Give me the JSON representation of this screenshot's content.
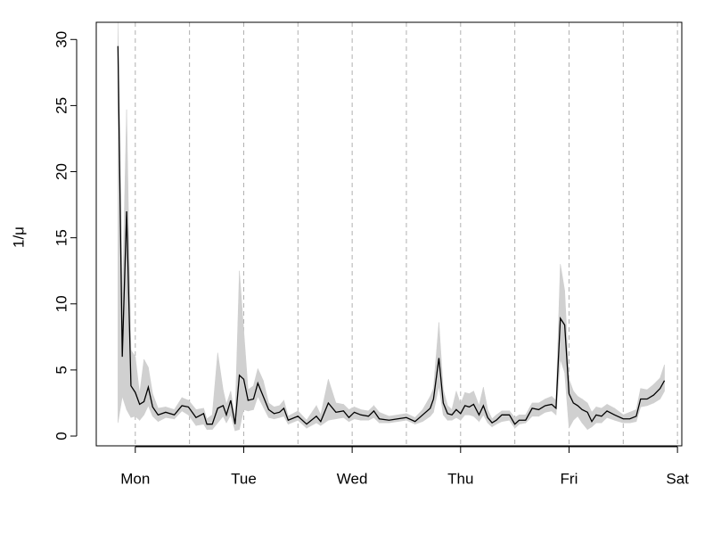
{
  "chart_data": {
    "type": "band-line",
    "ylabel": "1/μ",
    "x": [
      0.84,
      0.88,
      0.92,
      0.96,
      1.0,
      1.04,
      1.08,
      1.12,
      1.16,
      1.21,
      1.28,
      1.36,
      1.43,
      1.49,
      1.56,
      1.63,
      1.66,
      1.71,
      1.76,
      1.81,
      1.84,
      1.88,
      1.92,
      1.96,
      2.0,
      2.04,
      2.09,
      2.13,
      2.18,
      2.23,
      2.28,
      2.33,
      2.37,
      2.41,
      2.5,
      2.58,
      2.67,
      2.71,
      2.78,
      2.85,
      2.92,
      2.97,
      3.02,
      3.08,
      3.15,
      3.2,
      3.25,
      3.34,
      3.42,
      3.5,
      3.58,
      3.65,
      3.72,
      3.75,
      3.8,
      3.84,
      3.88,
      3.92,
      3.96,
      4.0,
      4.04,
      4.08,
      4.12,
      4.17,
      4.21,
      4.25,
      4.29,
      4.33,
      4.38,
      4.45,
      4.5,
      4.54,
      4.6,
      4.66,
      4.72,
      4.78,
      4.84,
      4.88,
      4.92,
      4.96,
      5.0,
      5.04,
      5.08,
      5.12,
      5.17,
      5.21,
      5.25,
      5.3,
      5.35,
      5.42,
      5.5,
      5.56,
      5.62,
      5.66,
      5.72,
      5.78,
      5.84,
      5.88
    ],
    "series": [
      {
        "color": "#000000",
        "band_color": "#d0d0d0",
        "values": [
          29.5,
          6,
          17,
          3.8,
          3.3,
          2.4,
          2.6,
          3.7,
          2.2,
          1.6,
          1.8,
          1.6,
          2.3,
          2.2,
          1.4,
          1.7,
          0.9,
          0.9,
          2.1,
          2.3,
          1.6,
          2.7,
          0.9,
          4.6,
          4.3,
          2.7,
          2.8,
          4,
          3,
          2,
          1.7,
          1.8,
          2.1,
          1.2,
          1.5,
          0.9,
          1.5,
          1.1,
          2.5,
          1.8,
          1.9,
          1.4,
          1.8,
          1.6,
          1.5,
          1.9,
          1.3,
          1.2,
          1.3,
          1.4,
          1.1,
          1.6,
          2.1,
          2.8,
          5.9,
          2.5,
          1.7,
          1.6,
          2,
          1.7,
          2.3,
          2.2,
          2.4,
          1.6,
          2.3,
          1.4,
          1,
          1.2,
          1.6,
          1.6,
          0.9,
          1.2,
          1.2,
          2.1,
          2,
          2.3,
          2.4,
          2.1,
          8.9,
          8.4,
          3.2,
          2.5,
          2.3,
          2,
          1.8,
          1.1,
          1.6,
          1.5,
          1.9,
          1.6,
          1.3,
          1.3,
          1.5,
          2.8,
          2.8,
          3.1,
          3.6,
          4.2
        ],
        "lower": [
          1,
          3,
          2,
          1.4,
          1.5,
          1.2,
          1.6,
          2.3,
          1.5,
          1.1,
          1.4,
          1.3,
          1.9,
          1.6,
          0.8,
          0.9,
          0.5,
          0.5,
          1,
          1.5,
          1,
          1.6,
          0.4,
          0.5,
          2,
          1.9,
          2,
          3,
          2.2,
          1.4,
          1.3,
          1.4,
          1.5,
          0.9,
          1.2,
          0.6,
          1,
          0.8,
          1.2,
          1.3,
          1.4,
          1.1,
          1.3,
          1.2,
          1.2,
          1.4,
          1,
          1,
          1.1,
          1.2,
          0.9,
          1.1,
          1.5,
          1.8,
          3.8,
          1.6,
          1.2,
          1.2,
          1.4,
          1.2,
          1.6,
          1.6,
          1.5,
          1.1,
          1.6,
          1,
          0.7,
          0.9,
          1.1,
          1.2,
          0.6,
          0.9,
          1,
          1.5,
          1.5,
          1.8,
          1.9,
          1.6,
          5.8,
          4.8,
          0.6,
          1.2,
          1.5,
          1,
          0.5,
          0.7,
          1,
          1,
          1.4,
          1.2,
          1,
          1,
          1.1,
          2.2,
          2.3,
          2.5,
          2.8,
          3.4
        ],
        "upper": [
          31.3,
          10,
          24.7,
          6.5,
          6,
          3.2,
          5.8,
          5.2,
          3.2,
          2.1,
          2.2,
          2,
          2.9,
          2.7,
          2,
          2.1,
          1.3,
          1.6,
          6.3,
          3.5,
          2.4,
          3.4,
          1.4,
          12.5,
          8,
          3.5,
          3.8,
          5.1,
          4.2,
          2.5,
          2.2,
          2.3,
          2.7,
          1.5,
          1.9,
          1.2,
          2.3,
          1.6,
          4.3,
          2.5,
          2.4,
          2,
          2.2,
          2,
          1.9,
          2.3,
          1.8,
          1.5,
          1.6,
          1.7,
          1.4,
          2,
          3,
          3.6,
          8.6,
          3.5,
          2.3,
          2,
          3.4,
          2.4,
          3.3,
          3.2,
          3.4,
          2.3,
          3.7,
          2,
          1.3,
          1.6,
          1.9,
          1.9,
          1.4,
          1.6,
          1.6,
          2.5,
          2.5,
          2.8,
          3,
          2.7,
          13,
          11,
          4.3,
          3.4,
          3,
          2.8,
          2.5,
          1.8,
          2.2,
          2.1,
          2.4,
          2.1,
          1.6,
          1.8,
          2,
          3.6,
          3.5,
          3.9,
          4.4,
          5.4
        ]
      }
    ],
    "xlim": [
      0.64,
      6.04
    ],
    "ylim": [
      -0.74,
      31.3
    ],
    "xticks": [
      {
        "value": 1,
        "label": "Mon"
      },
      {
        "value": 2,
        "label": "Tue"
      },
      {
        "value": 3,
        "label": "Wed"
      },
      {
        "value": 4,
        "label": "Thu"
      },
      {
        "value": 5,
        "label": "Fri"
      },
      {
        "value": 6,
        "label": "Sat"
      }
    ],
    "yticks": [
      0,
      5,
      10,
      15,
      20,
      25,
      30
    ],
    "xgrid": [
      1,
      1.5,
      2,
      2.5,
      3,
      3.5,
      4,
      4.5,
      5,
      5.5,
      6
    ],
    "grid_color": "#b0b0b0"
  }
}
